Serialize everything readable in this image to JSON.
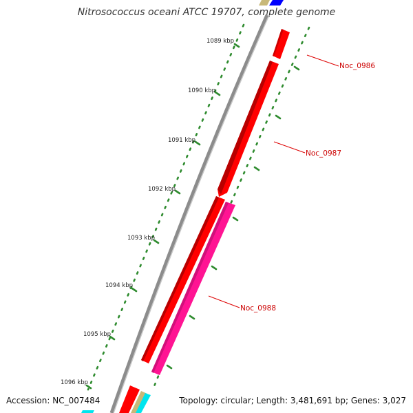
{
  "title": "Nitrosococcus oceani ATCC 19707, complete genome",
  "footer": {
    "accession": "Accession: NC_007484",
    "summary": "Topology: circular; Length: 3,481,691 bp; Genes: 3,027"
  },
  "ticks": [
    "1089 kbp",
    "1090 kbp",
    "1091 kbp",
    "1092 kbp",
    "1093 kbp",
    "1094 kbp",
    "1095 kbp",
    "1096 kbp"
  ],
  "genes": [
    {
      "label": "Noc_0986",
      "color": "#ff0000"
    },
    {
      "label": "Noc_0987",
      "color": "#ff0000"
    },
    {
      "label": "Noc_0988",
      "color": "#ff1493"
    }
  ],
  "colors": {
    "backbone": "#8c8c8c",
    "tick": "#2e8b2e",
    "label_line": "#dd0000",
    "gene_forward": "#ff0000",
    "gene_highlight": "#ff1493",
    "gene_tan": "#c8b878",
    "gene_blue": "#0000ff",
    "gene_cyan": "#00e5ee"
  }
}
